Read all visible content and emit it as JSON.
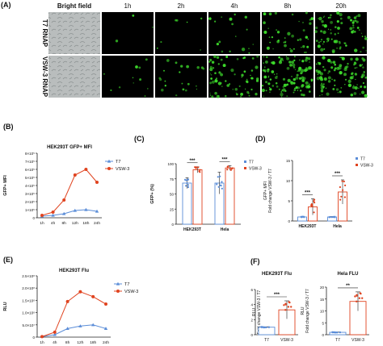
{
  "panelA": {
    "label": "(A)",
    "columns": [
      "Bright field",
      "1h",
      "2h",
      "4h",
      "8h",
      "20h"
    ],
    "rows": [
      "T7 RNAP",
      "VSW-3 RNAP"
    ],
    "green_density": [
      [
        0,
        0.02,
        0.05,
        0.12,
        0.3,
        0.55
      ],
      [
        0,
        0.08,
        0.15,
        0.5,
        0.8,
        0.75
      ]
    ],
    "colors": {
      "background": "#000000",
      "fluorescence": "#3ddc2b",
      "brightfield": "#b9bdbd"
    }
  },
  "chart_data": [
    {
      "id": "B",
      "panel": "(B)",
      "type": "line",
      "title": "HEK293T GFP+ MFI",
      "ylabel": "GFP+ MFI",
      "categories": [
        "1h",
        "4h",
        "8h",
        "12h",
        "18h",
        "24h"
      ],
      "ylim": [
        0,
        8
      ],
      "yticks": [
        0,
        1,
        2,
        3,
        4,
        5,
        6,
        7,
        8
      ],
      "yticklabels": [
        "0",
        "1×10⁵",
        "2×10⁵",
        "3×10⁵",
        "4×10⁵",
        "5×10⁵",
        "6×10⁵",
        "7×10⁵",
        "8×10⁵"
      ],
      "series": [
        {
          "name": "T7",
          "color": "#5b8dd8",
          "marker": "triangle",
          "values": [
            0.2,
            0.3,
            0.5,
            0.9,
            1.0,
            0.8
          ]
        },
        {
          "name": "VSW-3",
          "color": "#e0431f",
          "marker": "circle",
          "values": [
            0.3,
            0.7,
            2.2,
            5.3,
            6.0,
            4.4
          ]
        }
      ]
    },
    {
      "id": "C",
      "panel": "(C)",
      "type": "bar",
      "ylabel": "GFP+ (%)",
      "categories": [
        "HEK293T",
        "Hela"
      ],
      "ylim": [
        0,
        100
      ],
      "yticks": [
        0,
        25,
        50,
        75,
        100
      ],
      "yticklabels": [
        "0",
        "25",
        "50",
        "75",
        "100"
      ],
      "significance": [
        "***",
        "***"
      ],
      "series": [
        {
          "name": "T7",
          "color": "#5b8dd8",
          "values": [
            68,
            68
          ],
          "errors": [
            9,
            18
          ]
        },
        {
          "name": "VSW-3",
          "color": "#e0431f",
          "values": [
            90,
            93
          ],
          "errors": [
            5,
            4
          ]
        }
      ]
    },
    {
      "id": "D",
      "panel": "(D)",
      "type": "bar",
      "ylabel": "GFP+ MFI Fold change VSW-3 / T7",
      "categories": [
        "HEK293T",
        "Hela"
      ],
      "ylim": [
        0,
        15
      ],
      "yticks": [
        0,
        5,
        10,
        15
      ],
      "yticklabels": [
        "0",
        "5",
        "10",
        "15"
      ],
      "significance": [
        "***",
        "***"
      ],
      "series": [
        {
          "name": "T7",
          "color": "#5b8dd8",
          "values": [
            1,
            1
          ],
          "errors": [
            0.1,
            0.1
          ]
        },
        {
          "name": "VSW-3",
          "color": "#e0431f",
          "values": [
            3.5,
            7.2
          ],
          "errors": [
            2,
            3
          ]
        }
      ]
    },
    {
      "id": "E",
      "panel": "(E)",
      "type": "line",
      "title": "HEK293T Flu",
      "ylabel": "RLU",
      "categories": [
        "1h",
        "4h",
        "8h",
        "12h",
        "18h",
        "24h"
      ],
      "ylim": [
        0,
        2.5
      ],
      "yticks": [
        0,
        0.5,
        1,
        1.5,
        2,
        2.5
      ],
      "yticklabels": [
        "0",
        "5.0×10⁷",
        "1.0×10⁸",
        "1.5×10⁸",
        "2.0×10⁸",
        "2.5×10⁸"
      ],
      "series": [
        {
          "name": "T7",
          "color": "#5b8dd8",
          "marker": "triangle",
          "values": [
            0.02,
            0.1,
            0.35,
            0.45,
            0.5,
            0.35
          ]
        },
        {
          "name": "VSW-3",
          "color": "#e0431f",
          "marker": "circle",
          "values": [
            0.02,
            0.2,
            1.45,
            1.85,
            1.65,
            1.35
          ]
        }
      ]
    },
    {
      "id": "F1",
      "panel": "(F)",
      "type": "bar",
      "title": "HEK293T Flu",
      "ylabel": "RLU Fold change VSW-3 / T7",
      "categories": [
        "T7",
        "VSW-3"
      ],
      "ylim": [
        0,
        6
      ],
      "yticks": [
        0,
        2,
        4,
        6
      ],
      "yticklabels": [
        "0",
        "2",
        "4",
        "6"
      ],
      "significance": "***",
      "bars": [
        {
          "name": "T7",
          "value": 1.0,
          "error": 0.05,
          "color": "#5b8dd8"
        },
        {
          "name": "VSW-3",
          "value": 3.3,
          "error": 1.2,
          "color": "#e0431f"
        }
      ]
    },
    {
      "id": "F2",
      "panel": "",
      "type": "bar",
      "title": "Hela FLU",
      "ylabel": "RLU Fold change VSW-3 / T7",
      "categories": [
        "T7",
        "VSW-3"
      ],
      "ylim": [
        0,
        20
      ],
      "yticks": [
        0,
        5,
        10,
        15,
        20
      ],
      "yticklabels": [
        "0",
        "5",
        "10",
        "15",
        "20"
      ],
      "significance": "**",
      "bars": [
        {
          "name": "T7",
          "value": 1.0,
          "error": 0.1,
          "color": "#5b8dd8"
        },
        {
          "name": "VSW-3",
          "value": 14.0,
          "error": 4.0,
          "color": "#e0431f"
        }
      ]
    }
  ]
}
